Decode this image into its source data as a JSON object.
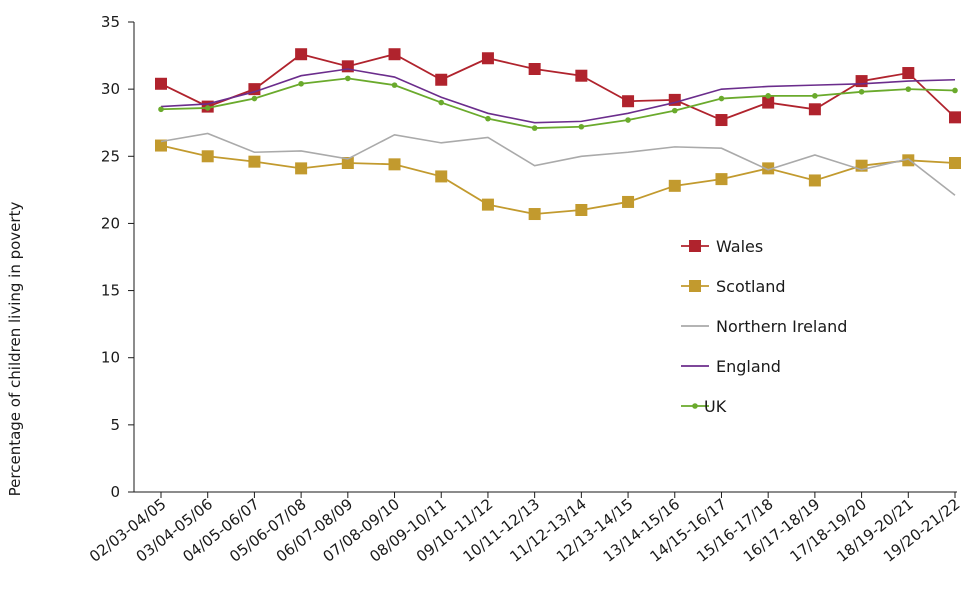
{
  "chart_data": {
    "type": "line",
    "title": "",
    "xlabel": "",
    "ylabel": "Percentage of children living in poverty",
    "ylim": [
      0,
      35
    ],
    "yticks": [
      0,
      5,
      10,
      15,
      20,
      25,
      30,
      35
    ],
    "grid": false,
    "legend_position": "right-center",
    "categories": [
      "02/03-04/05",
      "03/04-05/06",
      "04/05-06/07",
      "05/06-07/08",
      "06/07-08/09",
      "07/08-09/10",
      "08/09-10/11",
      "09/10-11/12",
      "10/11-12/13",
      "11/12-13/14",
      "12/13-14/15",
      "13/14-15/16",
      "14/15-16/17",
      "15/16-17/18",
      "16/17-18/19",
      "17/18-19/20",
      "18/19-20/21",
      "19/20-21/22"
    ],
    "series": [
      {
        "name": "Wales",
        "color": "#b0232d",
        "marker": "square",
        "values": [
          30.4,
          28.7,
          30.0,
          32.6,
          31.7,
          32.6,
          30.7,
          32.3,
          31.5,
          31.0,
          29.1,
          29.2,
          27.7,
          29.0,
          28.5,
          30.6,
          31.2,
          27.9
        ]
      },
      {
        "name": "Scotland",
        "color": "#c29a2e",
        "marker": "square",
        "values": [
          25.8,
          25.0,
          24.6,
          24.1,
          24.5,
          24.4,
          23.5,
          21.4,
          20.7,
          21.0,
          21.6,
          22.8,
          23.3,
          24.1,
          23.2,
          24.3,
          24.7,
          24.5
        ]
      },
      {
        "name": "Northern Ireland",
        "color": "#aaaaaa",
        "marker": "none",
        "values": [
          26.1,
          26.7,
          25.3,
          25.4,
          24.8,
          26.6,
          26.0,
          26.4,
          24.3,
          25.0,
          25.3,
          25.7,
          25.6,
          24.0,
          25.1,
          24.0,
          24.8,
          22.1
        ]
      },
      {
        "name": "England",
        "color": "#6b2d8c",
        "marker": "none",
        "values": [
          28.7,
          28.9,
          29.8,
          31.0,
          31.5,
          30.9,
          29.4,
          28.2,
          27.5,
          27.6,
          28.2,
          29.0,
          30.0,
          30.2,
          30.3,
          30.4,
          30.6,
          30.7
        ]
      },
      {
        "name": "UK",
        "color": "#6aaa2c",
        "marker": "dot",
        "values": [
          28.5,
          28.6,
          29.3,
          30.4,
          30.8,
          30.3,
          29.0,
          27.8,
          27.1,
          27.2,
          27.7,
          28.4,
          29.3,
          29.5,
          29.5,
          29.8,
          30.0,
          29.9
        ]
      }
    ]
  }
}
